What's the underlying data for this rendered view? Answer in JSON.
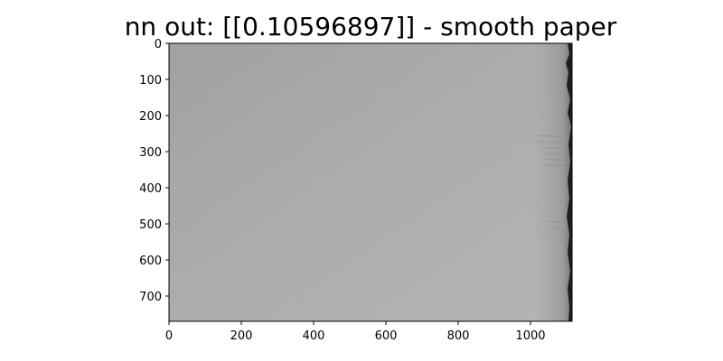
{
  "figure": {
    "title": "nn out: [[0.10596897]] - smooth paper"
  },
  "axes": {
    "x_ticks": [
      "0",
      "200",
      "400",
      "600",
      "800",
      "1000"
    ],
    "y_ticks": [
      "0",
      "100",
      "200",
      "300",
      "400",
      "500",
      "600",
      "700"
    ],
    "x_range": [
      0,
      1115
    ],
    "y_range": [
      0,
      770
    ],
    "y_inverted": true
  },
  "image": {
    "description_color": "#a8a8a8",
    "edge_color": "#1e1e1e"
  }
}
